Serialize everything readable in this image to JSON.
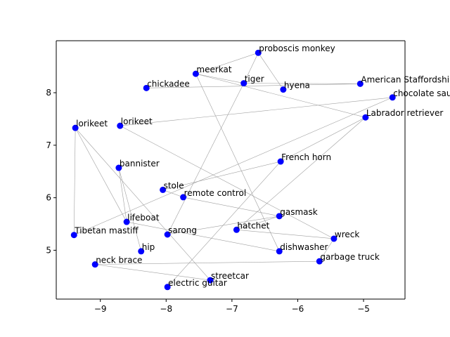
{
  "chart_data": {
    "type": "scatter",
    "title": "",
    "xlabel": "",
    "ylabel": "",
    "xlim": [
      -9.67,
      -4.37
    ],
    "ylim": [
      4.07,
      8.99
    ],
    "xticks": [
      -9,
      -8,
      -7,
      -6,
      -5
    ],
    "yticks": [
      5,
      6,
      7,
      8
    ],
    "grid": false,
    "point_color": "#0000ff",
    "edge_color": "#a0a0a0",
    "points": [
      {
        "label": "proboscis monkey",
        "x": -6.6,
        "y": 8.76
      },
      {
        "label": "meerkat",
        "x": -7.55,
        "y": 8.36
      },
      {
        "label": "tiger",
        "x": -6.82,
        "y": 8.18
      },
      {
        "label": "chickadee",
        "x": -8.3,
        "y": 8.09
      },
      {
        "label": "hyena",
        "x": -6.22,
        "y": 8.06
      },
      {
        "label": "American Staffordshire terrier",
        "x": -5.05,
        "y": 8.17
      },
      {
        "label": "chocolate sauce",
        "x": -4.56,
        "y": 7.91
      },
      {
        "label": "Labrador retriever",
        "x": -4.97,
        "y": 7.53
      },
      {
        "label": "lorikeet",
        "x": -9.38,
        "y": 7.33
      },
      {
        "label": "lorikeet",
        "x": -8.7,
        "y": 7.37
      },
      {
        "label": "French horn",
        "x": -6.26,
        "y": 6.69
      },
      {
        "label": "bannister",
        "x": -8.72,
        "y": 6.57
      },
      {
        "label": "stole",
        "x": -8.05,
        "y": 6.15
      },
      {
        "label": "remote control",
        "x": -7.74,
        "y": 6.01
      },
      {
        "label": "gasmask",
        "x": -6.28,
        "y": 5.65
      },
      {
        "label": "lifeboat",
        "x": -8.6,
        "y": 5.54
      },
      {
        "label": "hatchet",
        "x": -6.93,
        "y": 5.39
      },
      {
        "label": "Tibetan mastiff",
        "x": -9.4,
        "y": 5.29
      },
      {
        "label": "sarong",
        "x": -7.98,
        "y": 5.3
      },
      {
        "label": "wreck",
        "x": -5.45,
        "y": 5.22
      },
      {
        "label": "hip",
        "x": -8.38,
        "y": 4.98
      },
      {
        "label": "dishwasher",
        "x": -6.28,
        "y": 4.98
      },
      {
        "label": "garbage truck",
        "x": -5.67,
        "y": 4.79
      },
      {
        "label": "neck brace",
        "x": -9.08,
        "y": 4.73
      },
      {
        "label": "streetcar",
        "x": -7.33,
        "y": 4.43
      },
      {
        "label": "electric guitar",
        "x": -7.98,
        "y": 4.3
      }
    ],
    "edges": [
      [
        0,
        1
      ],
      [
        0,
        4
      ],
      [
        0,
        2
      ],
      [
        1,
        2
      ],
      [
        1,
        21
      ],
      [
        1,
        7
      ],
      [
        2,
        5
      ],
      [
        2,
        18
      ],
      [
        3,
        5
      ],
      [
        6,
        9
      ],
      [
        6,
        17
      ],
      [
        7,
        10
      ],
      [
        7,
        16
      ],
      [
        8,
        15
      ],
      [
        8,
        17
      ],
      [
        8,
        24
      ],
      [
        9,
        19
      ],
      [
        10,
        12
      ],
      [
        10,
        25
      ],
      [
        11,
        15
      ],
      [
        11,
        20
      ],
      [
        12,
        13
      ],
      [
        13,
        14
      ],
      [
        14,
        18
      ],
      [
        15,
        21
      ],
      [
        16,
        19
      ],
      [
        19,
        22
      ],
      [
        23,
        22
      ],
      [
        23,
        24
      ],
      [
        14,
        16
      ]
    ]
  }
}
